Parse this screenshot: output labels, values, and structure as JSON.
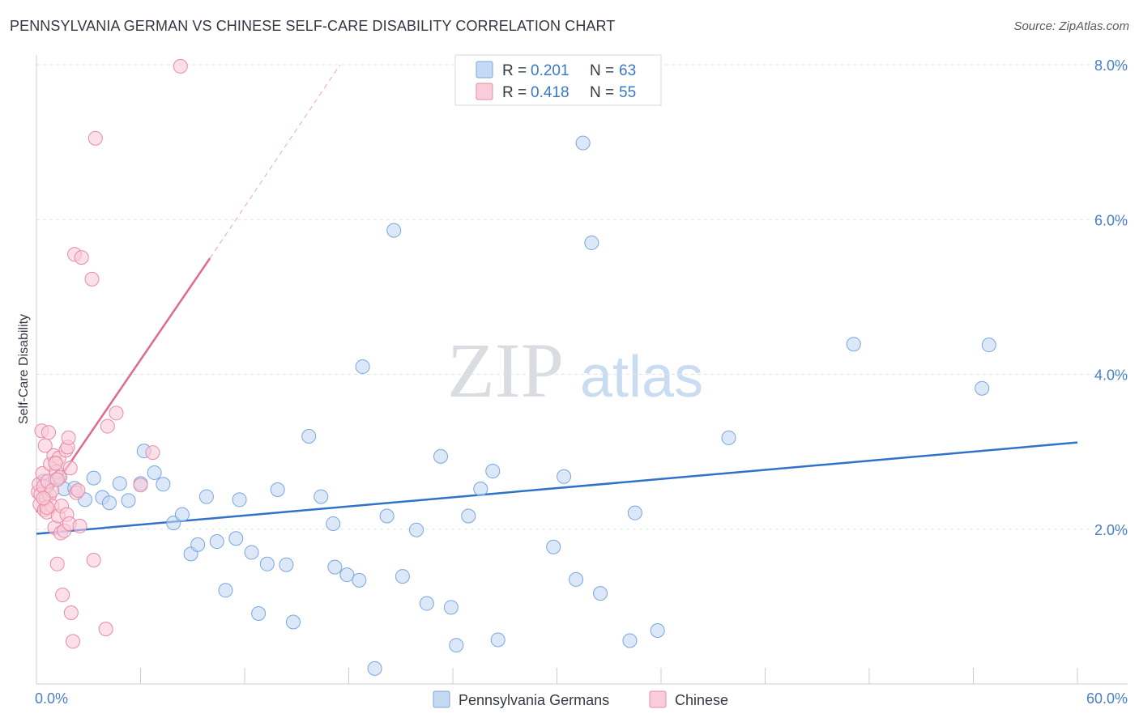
{
  "header": {
    "title": "PENNSYLVANIA GERMAN VS CHINESE SELF-CARE DISABILITY CORRELATION CHART",
    "source": "Source: ZipAtlas.com"
  },
  "watermark": {
    "zip": "ZIP",
    "atlas": "atlas"
  },
  "legend": {
    "r_label": "R = ",
    "n_label": "N = ",
    "rows": [
      {
        "r": "0.201",
        "n": "63",
        "color": "#a8c8ee"
      },
      {
        "r": "0.418",
        "n": "55",
        "color": "#f5b8cb"
      }
    ]
  },
  "colors": {
    "blue_fill": "#c5d9f3",
    "blue_stroke": "#7aa6dc",
    "blue_line": "#2f72c8",
    "pink_fill": "#f8ccd9",
    "pink_stroke": "#e88aa8",
    "pink_line": "#e0698f",
    "grid": "#dfe3e8",
    "axis_text": "#4a7fc4"
  },
  "chart_data": {
    "type": "scatter",
    "title": "PENNSYLVANIA GERMAN VS CHINESE SELF-CARE DISABILITY CORRELATION CHART",
    "xlabel": "",
    "ylabel": "Self-Care Disability",
    "xlim": [
      0,
      60
    ],
    "ylim": [
      0,
      8.0
    ],
    "x_tick_labels": [
      "0.0%",
      "60.0%"
    ],
    "y_ticks": [
      2.0,
      4.0,
      6.0,
      8.0
    ],
    "y_tick_labels": [
      "2.0%",
      "4.0%",
      "6.0%",
      "8.0%"
    ],
    "grid": true,
    "series": [
      {
        "name": "Pennsylvania Germans",
        "r": 0.201,
        "n": 63,
        "trend": {
          "x": [
            0,
            60
          ],
          "y": [
            1.94,
            3.12
          ]
        },
        "points": [
          [
            0.4,
            2.62
          ],
          [
            1.3,
            2.67
          ],
          [
            1.6,
            2.52
          ],
          [
            2.2,
            2.53
          ],
          [
            2.8,
            2.38
          ],
          [
            3.3,
            2.66
          ],
          [
            3.8,
            2.41
          ],
          [
            4.2,
            2.34
          ],
          [
            4.8,
            2.59
          ],
          [
            5.3,
            2.37
          ],
          [
            6.0,
            2.59
          ],
          [
            6.2,
            3.01
          ],
          [
            6.8,
            2.73
          ],
          [
            7.3,
            2.58
          ],
          [
            7.9,
            2.08
          ],
          [
            8.4,
            2.19
          ],
          [
            8.9,
            1.68
          ],
          [
            9.3,
            1.8
          ],
          [
            9.8,
            2.42
          ],
          [
            10.4,
            1.84
          ],
          [
            10.9,
            1.21
          ],
          [
            11.5,
            1.88
          ],
          [
            11.7,
            2.38
          ],
          [
            12.4,
            1.7
          ],
          [
            12.8,
            0.91
          ],
          [
            13.3,
            1.55
          ],
          [
            13.9,
            2.51
          ],
          [
            14.4,
            1.54
          ],
          [
            14.8,
            0.8
          ],
          [
            15.7,
            3.2
          ],
          [
            16.4,
            2.42
          ],
          [
            17.1,
            2.07
          ],
          [
            17.2,
            1.51
          ],
          [
            17.9,
            1.41
          ],
          [
            18.6,
            1.34
          ],
          [
            18.8,
            4.1
          ],
          [
            19.5,
            0.2
          ],
          [
            20.2,
            2.17
          ],
          [
            20.6,
            5.86
          ],
          [
            21.1,
            1.39
          ],
          [
            21.9,
            1.99
          ],
          [
            22.5,
            1.04
          ],
          [
            23.3,
            2.94
          ],
          [
            23.9,
            0.99
          ],
          [
            24.2,
            0.5
          ],
          [
            24.9,
            2.17
          ],
          [
            25.6,
            2.52
          ],
          [
            26.3,
            2.75
          ],
          [
            26.6,
            0.57
          ],
          [
            29.8,
            1.77
          ],
          [
            30.4,
            2.68
          ],
          [
            31.1,
            1.35
          ],
          [
            31.5,
            6.99
          ],
          [
            32.0,
            5.7
          ],
          [
            32.5,
            1.17
          ],
          [
            34.2,
            0.56
          ],
          [
            34.5,
            2.21
          ],
          [
            35.8,
            0.69
          ],
          [
            39.9,
            3.18
          ],
          [
            47.1,
            4.39
          ],
          [
            54.5,
            3.82
          ],
          [
            54.9,
            4.38
          ],
          [
            1.1,
            2.64
          ]
        ]
      },
      {
        "name": "Chinese",
        "r": 0.418,
        "n": 55,
        "trend": {
          "x": [
            0,
            10
          ],
          "y": [
            2.22,
            5.5
          ]
        },
        "trend_dashed": {
          "x": [
            10,
            17.5
          ],
          "y": [
            5.5,
            8.0
          ]
        },
        "points": [
          [
            0.1,
            2.48
          ],
          [
            0.15,
            2.58
          ],
          [
            0.2,
            2.32
          ],
          [
            0.25,
            2.45
          ],
          [
            0.3,
            3.27
          ],
          [
            0.35,
            2.72
          ],
          [
            0.4,
            2.55
          ],
          [
            0.45,
            2.25
          ],
          [
            0.5,
            3.08
          ],
          [
            0.55,
            2.4
          ],
          [
            0.6,
            2.22
          ],
          [
            0.65,
            2.62
          ],
          [
            0.7,
            3.25
          ],
          [
            0.75,
            2.44
          ],
          [
            0.8,
            2.84
          ],
          [
            0.9,
            2.3
          ],
          [
            1.0,
            2.95
          ],
          [
            1.05,
            2.02
          ],
          [
            1.1,
            2.86
          ],
          [
            1.15,
            2.74
          ],
          [
            1.2,
            1.55
          ],
          [
            1.25,
            2.17
          ],
          [
            1.3,
            2.92
          ],
          [
            1.35,
            2.67
          ],
          [
            1.4,
            1.95
          ],
          [
            1.45,
            2.3
          ],
          [
            1.5,
            1.15
          ],
          [
            1.6,
            1.98
          ],
          [
            1.7,
            3.02
          ],
          [
            1.75,
            2.19
          ],
          [
            1.8,
            3.06
          ],
          [
            1.85,
            3.18
          ],
          [
            1.9,
            2.07
          ],
          [
            1.95,
            2.79
          ],
          [
            2.0,
            0.92
          ],
          [
            2.1,
            0.55
          ],
          [
            2.2,
            5.55
          ],
          [
            2.3,
            2.47
          ],
          [
            2.5,
            2.04
          ],
          [
            2.6,
            5.51
          ],
          [
            3.2,
            5.23
          ],
          [
            3.3,
            1.6
          ],
          [
            3.4,
            7.05
          ],
          [
            4.0,
            0.71
          ],
          [
            4.1,
            3.33
          ],
          [
            4.6,
            3.5
          ],
          [
            6.0,
            2.57
          ],
          [
            6.7,
            2.99
          ],
          [
            8.3,
            7.98
          ],
          [
            0.9,
            2.5
          ],
          [
            0.6,
            2.28
          ],
          [
            1.1,
            2.85
          ],
          [
            0.4,
            2.4
          ],
          [
            2.4,
            2.5
          ],
          [
            1.2,
            2.64
          ]
        ]
      }
    ]
  },
  "bottom_legend": [
    {
      "label": "Pennsylvania Germans"
    },
    {
      "label": "Chinese"
    }
  ]
}
